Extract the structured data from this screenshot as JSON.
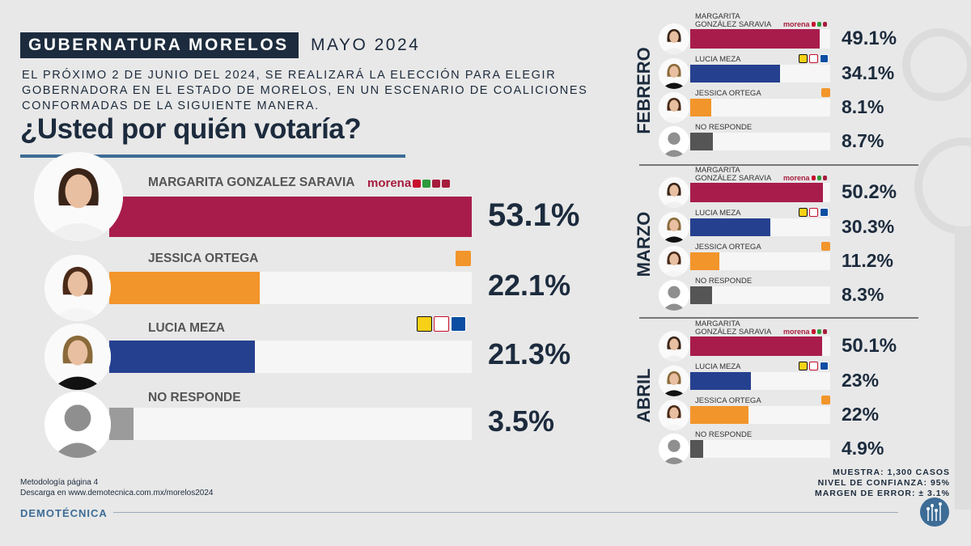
{
  "header": {
    "title": "GUBERNATURA MORELOS",
    "month": "MAYO 2024"
  },
  "intro": {
    "line1": "EL PRÓXIMO 2 DE JUNIO DEL 2024, SE REALIZARÁ LA ELECCIÓN PARA ELEGIR",
    "line2": "GOBERNADORA EN EL ESTADO DE MORELOS, EN UN ESCENARIO DE COALICIONES",
    "line3": "CONFORMADAS DE LA SIGUIENTE MANERA."
  },
  "question": "¿Usted por quién votaría?",
  "logos": {
    "morena": "morena"
  },
  "chart_data": [
    {
      "type": "bar",
      "title": "MAYO 2024",
      "categories": [
        "MARGARITA GONZALEZ SARAVIA",
        "JESSICA ORTEGA",
        "LUCIA MEZA",
        "NO RESPONDE"
      ],
      "values": [
        53.1,
        22.1,
        21.3,
        3.5
      ],
      "labels": [
        "53.1%",
        "22.1%",
        "21.3%",
        "3.5%"
      ],
      "colors": [
        "#a81c4c",
        "#f2952b",
        "#25408f",
        "#9b9b9b"
      ],
      "ylim": [
        0,
        53.1
      ]
    },
    {
      "type": "bar",
      "title": "FEBRERO",
      "categories": [
        "MARGARITA GONZÁLEZ SARAVIA",
        "LUCIA MEZA",
        "JESSICA ORTEGA",
        "NO RESPONDE"
      ],
      "values": [
        49.1,
        34.1,
        8.1,
        8.7
      ],
      "labels": [
        "49.1%",
        "34.1%",
        "8.1%",
        "8.7%"
      ],
      "colors": [
        "#a81c4c",
        "#25408f",
        "#f2952b",
        "#555555"
      ],
      "ylim": [
        0,
        53.1
      ]
    },
    {
      "type": "bar",
      "title": "MARZO",
      "categories": [
        "MARGARITA GONZÁLEZ SARAVIA",
        "LUCIA MEZA",
        "JESSICA ORTEGA",
        "NO RESPONDE"
      ],
      "values": [
        50.2,
        30.3,
        11.2,
        8.3
      ],
      "labels": [
        "50.2%",
        "30.3%",
        "11.2%",
        "8.3%"
      ],
      "colors": [
        "#a81c4c",
        "#25408f",
        "#f2952b",
        "#555555"
      ],
      "ylim": [
        0,
        53.1
      ]
    },
    {
      "type": "bar",
      "title": "ABRIL",
      "categories": [
        "MARGARITA GONZÁLEZ SARAVIA",
        "LUCIA MEZA",
        "JESSICA ORTEGA",
        "NO RESPONDE"
      ],
      "values": [
        50.1,
        23,
        22,
        4.9
      ],
      "labels": [
        "50.1%",
        "23%",
        "22%",
        "4.9%"
      ],
      "colors": [
        "#a81c4c",
        "#25408f",
        "#f2952b",
        "#555555"
      ],
      "ylim": [
        0,
        53.1
      ]
    }
  ],
  "small_names": {
    "margarita_1": "MARGARITA",
    "margarita_2": "GONZÁLEZ SARAVIA",
    "lucia": "LUCIA MEZA",
    "jessica": "JESSICA ORTEGA",
    "noresp": "NO RESPONDE"
  },
  "footer": {
    "method": "Metodología página 4",
    "download": "Descarga en www.demotecnica.com.mx/morelos2024",
    "brand": "DEMOTÉCNICA",
    "muestra": "MUESTRA: 1,300 CASOS",
    "confianza": "NIVEL DE CONFIANZA: 95%",
    "error": "MARGEN DE ERROR: ± 3.1%"
  }
}
